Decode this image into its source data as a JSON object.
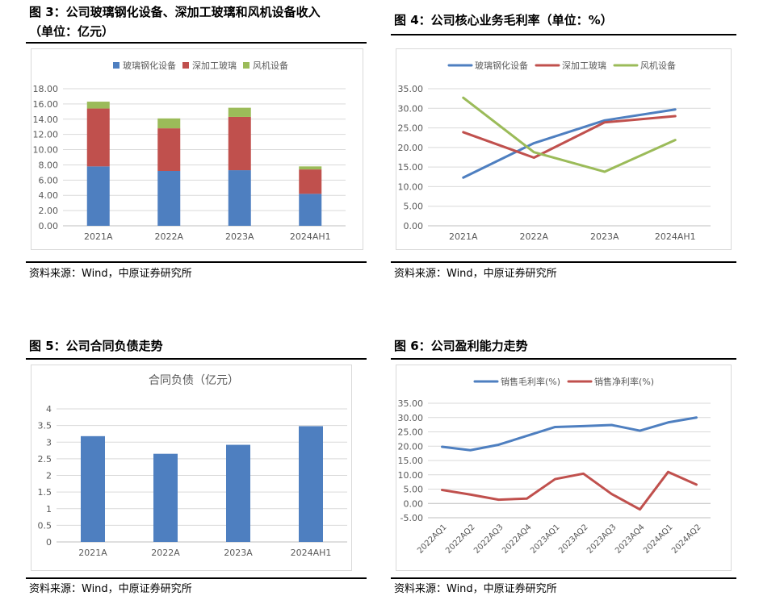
{
  "figures": [
    {
      "title_line1": "图 3：公司玻璃钢化设备、深加工玻璃和风机设备收入",
      "title_line2": "（单位：亿元）",
      "source": "资料来源：Wind，中原证券研究所"
    },
    {
      "title_line1": "图 4：公司核心业务毛利率（单位：%）",
      "source": "资料来源：Wind，中原证券研究所"
    },
    {
      "title_line1": "图 5：公司合同负债走势",
      "source": "资料来源：Wind，中原证券研究所"
    },
    {
      "title_line1": "图 6：公司盈利能力走势",
      "source": "资料来源：Wind，中原证券研究所"
    }
  ],
  "colors": {
    "blue": "#4e7fc0",
    "red": "#c0504d",
    "green": "#9bbb59",
    "grid": "#d9d9d9",
    "axis_text": "#595959"
  },
  "chart_data": [
    {
      "type": "bar",
      "stacked": true,
      "title": "",
      "categories": [
        "2021A",
        "2022A",
        "2023A",
        "2024AH1"
      ],
      "ylim": [
        0,
        18
      ],
      "yticks": [
        "0.00",
        "2.00",
        "4.00",
        "6.00",
        "8.00",
        "10.00",
        "12.00",
        "14.00",
        "16.00",
        "18.00"
      ],
      "legend_position": "top",
      "grid": true,
      "series": [
        {
          "name": "玻璃钢化设备",
          "color": "#4e7fc0",
          "values": [
            7.8,
            7.2,
            7.3,
            4.2
          ]
        },
        {
          "name": "深加工玻璃",
          "color": "#c0504d",
          "values": [
            7.6,
            5.6,
            7.0,
            3.2
          ]
        },
        {
          "name": "风机设备",
          "color": "#9bbb59",
          "values": [
            0.9,
            1.3,
            1.2,
            0.4
          ]
        }
      ]
    },
    {
      "type": "line",
      "title": "",
      "categories": [
        "2021A",
        "2022A",
        "2023A",
        "2024AH1"
      ],
      "ylim": [
        0,
        35
      ],
      "yticks": [
        "0.00",
        "5.00",
        "10.00",
        "15.00",
        "20.00",
        "25.00",
        "30.00",
        "35.00"
      ],
      "legend_position": "top",
      "grid": true,
      "series": [
        {
          "name": "玻璃钢化设备",
          "color": "#4e7fc0",
          "values": [
            12.3,
            21.1,
            26.9,
            29.7
          ]
        },
        {
          "name": "深加工玻璃",
          "color": "#c0504d",
          "values": [
            23.9,
            17.4,
            26.4,
            28.0
          ]
        },
        {
          "name": "风机设备",
          "color": "#9bbb59",
          "values": [
            32.7,
            18.8,
            13.8,
            21.9
          ]
        }
      ]
    },
    {
      "type": "bar",
      "title": "合同负债（亿元）",
      "categories": [
        "2021A",
        "2022A",
        "2023A",
        "2024AH1"
      ],
      "ylim": [
        0,
        4
      ],
      "yticks": [
        "0",
        "0.5",
        "1",
        "1.5",
        "2",
        "2.5",
        "3",
        "3.5",
        "4"
      ],
      "grid": true,
      "series": [
        {
          "name": "",
          "color": "#4e7fc0",
          "values": [
            3.18,
            2.65,
            2.92,
            3.48
          ]
        }
      ]
    },
    {
      "type": "line",
      "title": "",
      "categories": [
        "2022AQ1",
        "2022AQ2",
        "2022AQ3",
        "2022AQ4",
        "2023AQ1",
        "2023AQ2",
        "2023AQ3",
        "2023AQ4",
        "2024AQ1",
        "2024AQ2"
      ],
      "ylim": [
        -5,
        35
      ],
      "yticks": [
        "-5.00",
        "0.00",
        "5.00",
        "10.00",
        "15.00",
        "20.00",
        "25.00",
        "30.00",
        "35.00"
      ],
      "legend_position": "top",
      "grid": true,
      "series": [
        {
          "name": "销售毛利率(%)",
          "color": "#4e7fc0",
          "values": [
            19.8,
            18.6,
            20.5,
            23.6,
            26.7,
            27.0,
            27.4,
            25.4,
            28.3,
            30.0
          ]
        },
        {
          "name": "销售净利率(%)",
          "color": "#c0504d",
          "values": [
            4.7,
            3.1,
            1.3,
            1.7,
            8.5,
            10.4,
            3.3,
            -2.1,
            11.0,
            6.6
          ]
        }
      ]
    }
  ]
}
